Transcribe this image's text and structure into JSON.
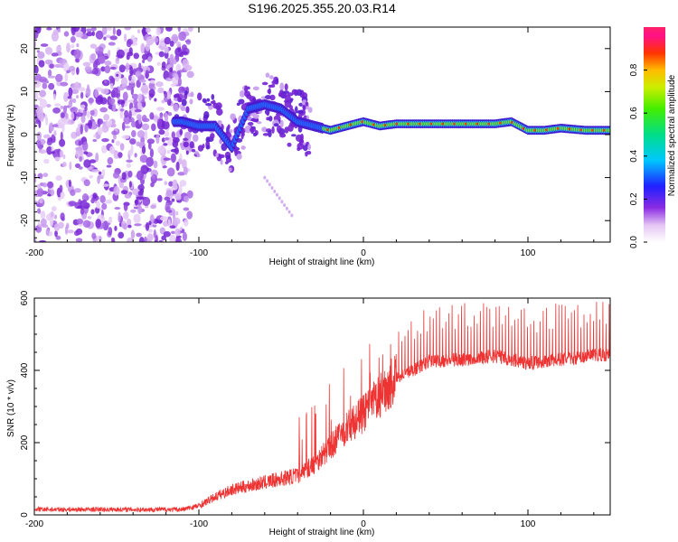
{
  "chart_data": [
    {
      "type": "heatmap",
      "title": "S196.2025.355.20.03.R14",
      "xlabel": "Height of straight line (km)",
      "ylabel": "Frequency (Hz)",
      "xlim": [
        -200,
        150
      ],
      "ylim": [
        -25,
        25
      ],
      "xticks": [
        "-200",
        "-100",
        "0",
        "100"
      ],
      "yticks": [
        "20",
        "10",
        "0",
        "-10",
        "-20"
      ],
      "colorbar": {
        "label": "Normalized spectral amplitude",
        "ticks": [
          "0.0",
          "0.2",
          "0.4",
          "0.6",
          "0.8"
        ],
        "range": [
          0,
          1
        ]
      },
      "signal_track": [
        {
          "x": -110,
          "y": 3
        },
        {
          "x": -100,
          "y": 2
        },
        {
          "x": -90,
          "y": 2
        },
        {
          "x": -80,
          "y": -3
        },
        {
          "x": -70,
          "y": 6
        },
        {
          "x": -60,
          "y": 7
        },
        {
          "x": -50,
          "y": 6
        },
        {
          "x": -40,
          "y": 3
        },
        {
          "x": -30,
          "y": 2
        },
        {
          "x": -20,
          "y": 1
        },
        {
          "x": -10,
          "y": 2
        },
        {
          "x": 0,
          "y": 3
        },
        {
          "x": 10,
          "y": 2
        },
        {
          "x": 20,
          "y": 2.5
        },
        {
          "x": 40,
          "y": 2.5
        },
        {
          "x": 60,
          "y": 2.5
        },
        {
          "x": 80,
          "y": 2.5
        },
        {
          "x": 90,
          "y": 3
        },
        {
          "x": 100,
          "y": 1
        },
        {
          "x": 110,
          "y": 1
        },
        {
          "x": 120,
          "y": 1.5
        },
        {
          "x": 135,
          "y": 1
        },
        {
          "x": 150,
          "y": 1
        }
      ]
    },
    {
      "type": "line",
      "title": "",
      "xlabel": "Height of straight line (km)",
      "ylabel": "SNR (10 * v/v)",
      "xlim": [
        -200,
        150
      ],
      "ylim": [
        0,
        600
      ],
      "xticks": [
        "-200",
        "-100",
        "0",
        "100"
      ],
      "yticks": [
        "600",
        "400",
        "200",
        "0"
      ],
      "color": "#ee3333",
      "trend": [
        {
          "x": -200,
          "y": 15
        },
        {
          "x": -110,
          "y": 15
        },
        {
          "x": -100,
          "y": 25
        },
        {
          "x": -90,
          "y": 50
        },
        {
          "x": -80,
          "y": 70
        },
        {
          "x": -60,
          "y": 90
        },
        {
          "x": -40,
          "y": 110
        },
        {
          "x": -30,
          "y": 140
        },
        {
          "x": -20,
          "y": 190
        },
        {
          "x": -10,
          "y": 240
        },
        {
          "x": 0,
          "y": 280
        },
        {
          "x": 10,
          "y": 330
        },
        {
          "x": 20,
          "y": 380
        },
        {
          "x": 30,
          "y": 400
        },
        {
          "x": 40,
          "y": 425
        },
        {
          "x": 60,
          "y": 430
        },
        {
          "x": 80,
          "y": 440
        },
        {
          "x": 100,
          "y": 420
        },
        {
          "x": 120,
          "y": 430
        },
        {
          "x": 150,
          "y": 445
        }
      ]
    }
  ]
}
